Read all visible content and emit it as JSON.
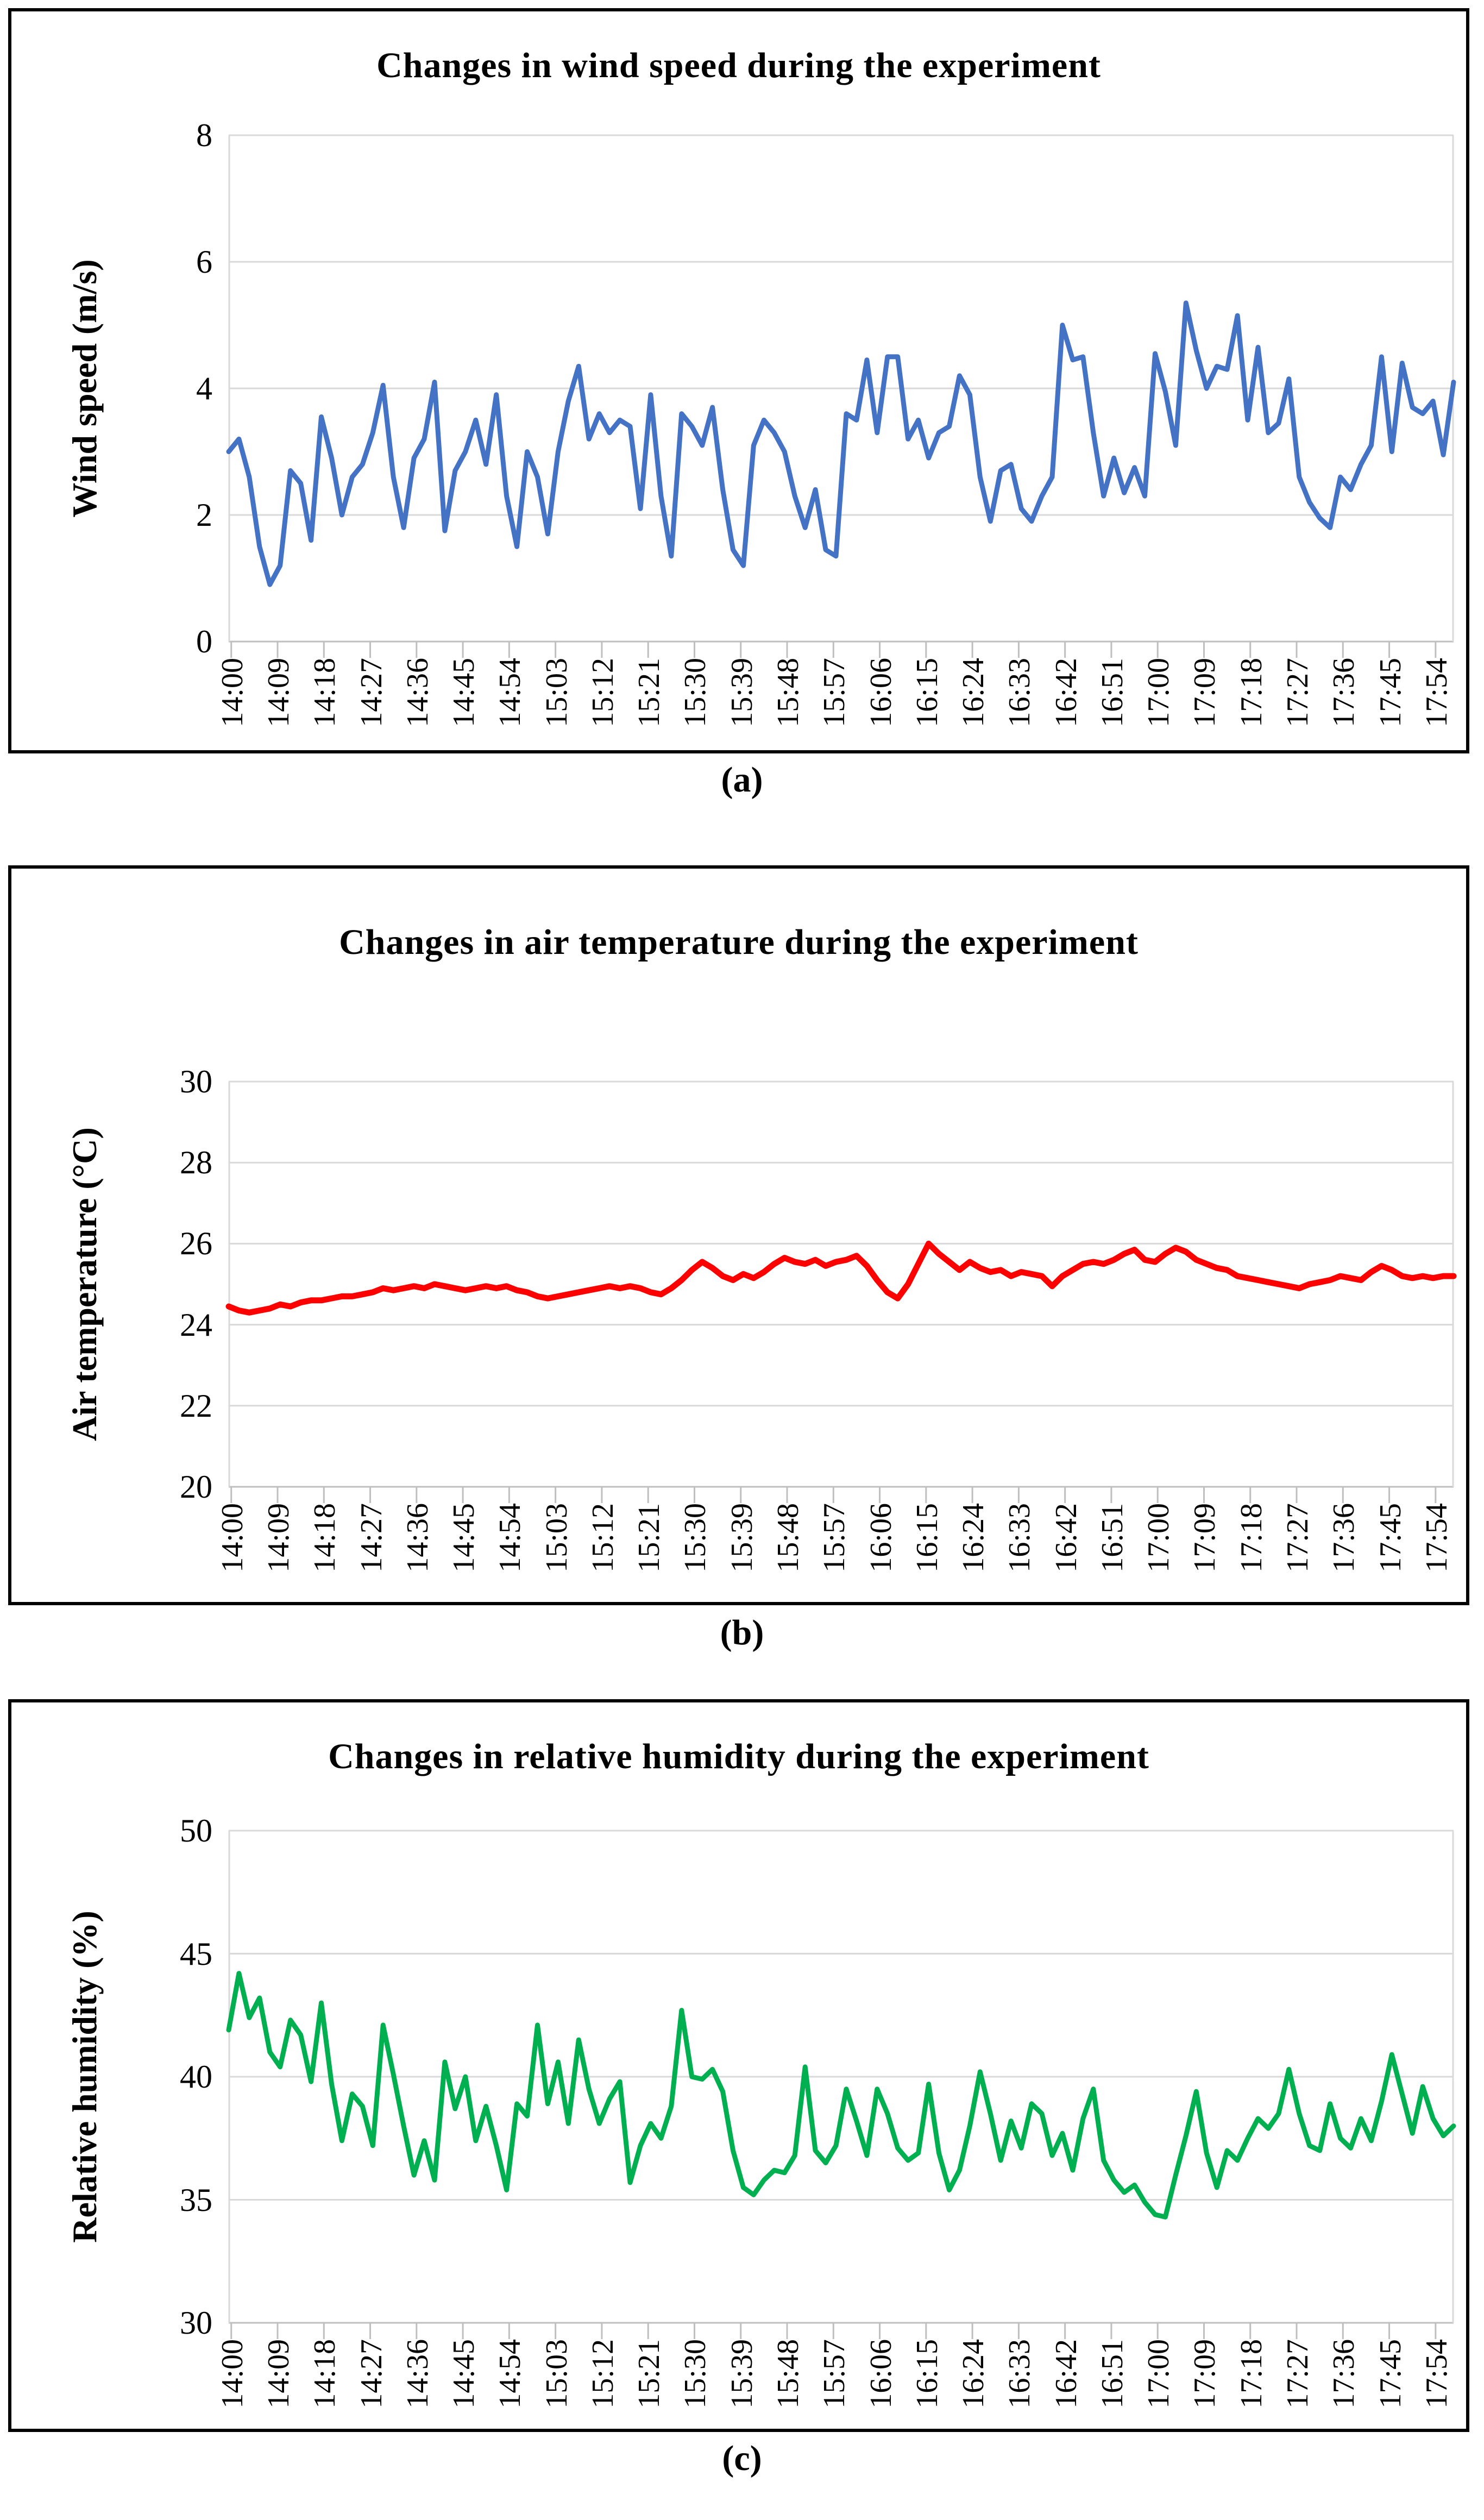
{
  "figure": {
    "captions": [
      "(a)",
      "(b)",
      "(c)"
    ],
    "background": "#FFFFFF"
  },
  "styles": {
    "grid_color": "#D9D9D9",
    "axis_color": "#BFBFBF",
    "text_color": "#000000",
    "panel_border_color": "#000000"
  },
  "chart_data": [
    {
      "type": "line",
      "panel_label": "(a)",
      "title": "Changes in wind speed during the experiment",
      "ylabel": "Wind speed (m/s)",
      "line_color": "#4472C4",
      "ylim": [
        0,
        8
      ],
      "yticks": [
        0,
        2,
        4,
        6,
        8
      ],
      "grid": true,
      "legend": "none",
      "x_start": "14:00",
      "x_end": "17:58",
      "sample_interval_minutes": 2,
      "x_tick_labels": [
        "14:00",
        "14:09",
        "14:18",
        "14:27",
        "14:36",
        "14:45",
        "14:54",
        "15:03",
        "15:12",
        "15:21",
        "15:30",
        "15:39",
        "15:48",
        "15:57",
        "16:06",
        "16:15",
        "16:24",
        "16:33",
        "16:42",
        "16:51",
        "17:00",
        "17:09",
        "17:18",
        "17:27",
        "17:36",
        "17:45",
        "17:54"
      ],
      "values": [
        3.0,
        3.2,
        2.6,
        1.5,
        0.9,
        1.2,
        2.7,
        2.5,
        1.6,
        3.55,
        2.9,
        2.0,
        2.6,
        2.8,
        3.3,
        4.05,
        2.6,
        1.8,
        2.9,
        3.2,
        4.1,
        1.75,
        2.7,
        3.0,
        3.5,
        2.8,
        3.9,
        2.3,
        1.5,
        3.0,
        2.6,
        1.7,
        3.0,
        3.8,
        4.35,
        3.2,
        3.6,
        3.3,
        3.5,
        3.4,
        2.1,
        3.9,
        2.3,
        1.35,
        3.6,
        3.4,
        3.1,
        3.7,
        2.4,
        1.45,
        1.2,
        3.1,
        3.5,
        3.3,
        3.0,
        2.3,
        1.8,
        2.4,
        1.45,
        1.35,
        3.6,
        3.5,
        4.45,
        3.3,
        4.5,
        4.5,
        3.2,
        3.5,
        2.9,
        3.3,
        3.4,
        4.2,
        3.9,
        2.6,
        1.9,
        2.7,
        2.8,
        2.1,
        1.9,
        2.3,
        2.6,
        5.0,
        4.45,
        4.5,
        3.3,
        2.3,
        2.9,
        2.35,
        2.75,
        2.3,
        4.55,
        3.95,
        3.1,
        5.35,
        4.6,
        4.0,
        4.35,
        4.3,
        5.15,
        3.5,
        4.65,
        3.3,
        3.45,
        4.15,
        2.6,
        2.2,
        1.95,
        1.8,
        2.6,
        2.4,
        2.8,
        3.1,
        4.5,
        3.0,
        4.4,
        3.7,
        3.6,
        3.8,
        2.95,
        4.1
      ]
    },
    {
      "type": "line",
      "panel_label": "(b)",
      "title": "Changes in air temperature during the experiment",
      "ylabel": "Air temperature (°C)",
      "line_color": "#FF0000",
      "ylim": [
        20,
        30
      ],
      "yticks": [
        20,
        22,
        24,
        26,
        28,
        30
      ],
      "grid": true,
      "legend": "none",
      "x_start": "14:00",
      "x_end": "17:58",
      "sample_interval_minutes": 2,
      "x_tick_labels": [
        "14:00",
        "14:09",
        "14:18",
        "14:27",
        "14:36",
        "14:45",
        "14:54",
        "15:03",
        "15:12",
        "15:21",
        "15:30",
        "15:39",
        "15:48",
        "15:57",
        "16:06",
        "16:15",
        "16:24",
        "16:33",
        "16:42",
        "16:51",
        "17:00",
        "17:09",
        "17:18",
        "17:27",
        "17:36",
        "17:45",
        "17:54"
      ],
      "values": [
        24.45,
        24.35,
        24.3,
        24.35,
        24.4,
        24.5,
        24.45,
        24.55,
        24.6,
        24.6,
        24.65,
        24.7,
        24.7,
        24.75,
        24.8,
        24.9,
        24.85,
        24.9,
        24.95,
        24.9,
        25.0,
        24.95,
        24.9,
        24.85,
        24.9,
        24.95,
        24.9,
        24.95,
        24.85,
        24.8,
        24.7,
        24.65,
        24.7,
        24.75,
        24.8,
        24.85,
        24.9,
        24.95,
        24.9,
        24.95,
        24.9,
        24.8,
        24.75,
        24.9,
        25.1,
        25.35,
        25.55,
        25.4,
        25.2,
        25.1,
        25.25,
        25.15,
        25.3,
        25.5,
        25.65,
        25.55,
        25.5,
        25.6,
        25.45,
        25.55,
        25.6,
        25.7,
        25.45,
        25.1,
        24.8,
        24.65,
        25.0,
        25.5,
        26.0,
        25.75,
        25.55,
        25.35,
        25.55,
        25.4,
        25.3,
        25.35,
        25.2,
        25.3,
        25.25,
        25.2,
        24.95,
        25.2,
        25.35,
        25.5,
        25.55,
        25.5,
        25.6,
        25.75,
        25.85,
        25.6,
        25.55,
        25.75,
        25.9,
        25.8,
        25.6,
        25.5,
        25.4,
        25.35,
        25.2,
        25.15,
        25.1,
        25.05,
        25.0,
        24.95,
        24.9,
        25.0,
        25.05,
        25.1,
        25.2,
        25.15,
        25.1,
        25.3,
        25.45,
        25.35,
        25.2,
        25.15,
        25.2,
        25.15,
        25.2,
        25.2
      ]
    },
    {
      "type": "line",
      "panel_label": "(c)",
      "title": "Changes in relative humidity during the experiment",
      "ylabel": "Relative humidity (%)",
      "line_color": "#00B050",
      "ylim": [
        30,
        50
      ],
      "yticks": [
        30,
        35,
        40,
        45,
        50
      ],
      "grid": true,
      "legend": "none",
      "x_start": "14:00",
      "x_end": "17:58",
      "sample_interval_minutes": 2,
      "x_tick_labels": [
        "14:00",
        "14:09",
        "14:18",
        "14:27",
        "14:36",
        "14:45",
        "14:54",
        "15:03",
        "15:12",
        "15:21",
        "15:30",
        "15:39",
        "15:48",
        "15:57",
        "16:06",
        "16:15",
        "16:24",
        "16:33",
        "16:42",
        "16:51",
        "17:00",
        "17:09",
        "17:18",
        "17:27",
        "17:36",
        "17:45",
        "17:54"
      ],
      "values": [
        41.9,
        44.2,
        42.4,
        43.2,
        41.0,
        40.4,
        42.3,
        41.7,
        39.8,
        43.0,
        39.7,
        37.4,
        39.3,
        38.8,
        37.2,
        42.1,
        40.1,
        38.0,
        36.0,
        37.4,
        35.8,
        40.6,
        38.7,
        40.0,
        37.4,
        38.8,
        37.2,
        35.4,
        38.9,
        38.4,
        42.1,
        38.9,
        40.6,
        38.1,
        41.5,
        39.5,
        38.1,
        39.1,
        39.8,
        35.7,
        37.2,
        38.1,
        37.5,
        38.8,
        42.7,
        40.0,
        39.9,
        40.3,
        39.4,
        37.0,
        35.5,
        35.2,
        35.8,
        36.2,
        36.1,
        36.8,
        40.4,
        37.0,
        36.5,
        37.2,
        39.5,
        38.2,
        36.8,
        39.5,
        38.5,
        37.1,
        36.6,
        36.9,
        39.7,
        36.9,
        35.4,
        36.2,
        38.0,
        40.2,
        38.5,
        36.6,
        38.2,
        37.1,
        38.9,
        38.5,
        36.8,
        37.7,
        36.2,
        38.3,
        39.5,
        36.6,
        35.8,
        35.3,
        35.6,
        34.9,
        34.4,
        34.3,
        36.0,
        37.6,
        39.4,
        36.9,
        35.5,
        37.0,
        36.6,
        37.5,
        38.3,
        37.9,
        38.5,
        40.3,
        38.5,
        37.2,
        37.0,
        38.9,
        37.5,
        37.1,
        38.3,
        37.4,
        39.0,
        40.9,
        39.3,
        37.7,
        39.6,
        38.3,
        37.6,
        38.0
      ]
    }
  ]
}
